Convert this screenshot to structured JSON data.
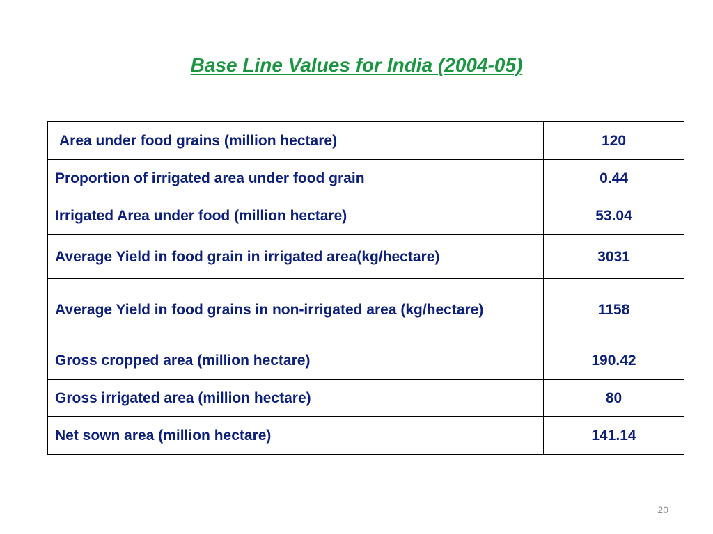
{
  "slide": {
    "title": "Base Line Values for India (2004-05)",
    "page_number": "20"
  },
  "table": {
    "rows": [
      {
        "label": "Area under food grains (million hectare)",
        "value": "120"
      },
      {
        "label": "Proportion of irrigated area under food grain",
        "value": "0.44"
      },
      {
        "label": "Irrigated Area under food (million hectare)",
        "value": "53.04"
      },
      {
        "label": "Average Yield in food grain in irrigated area(kg/hectare)",
        "value": "3031"
      },
      {
        "label": "Average Yield in food grains in non-irrigated area (kg/hectare)",
        "value": "1158"
      },
      {
        "label": "Gross cropped area (million hectare)",
        "value": "190.42"
      },
      {
        "label": "Gross irrigated area (million hectare)",
        "value": "80"
      },
      {
        "label": "Net sown area (million hectare)",
        "value": "141.14"
      }
    ]
  },
  "colors": {
    "title": "#1a9641",
    "table_text": "#0c1f7a",
    "border": "#000000",
    "page_number": "#8c8c8c"
  }
}
